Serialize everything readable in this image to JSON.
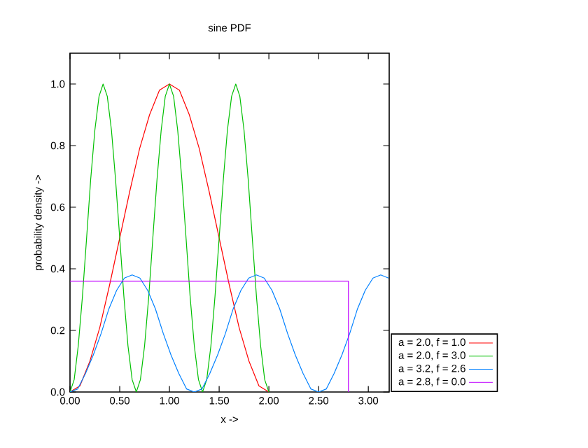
{
  "chart_data": {
    "type": "line",
    "title": "sine PDF",
    "xlabel": "x ->",
    "ylabel": "probability density ->",
    "xlim": [
      0,
      3.21
    ],
    "ylim": [
      0,
      1.1
    ],
    "xticks": [
      {
        "value": 0,
        "label": "0.00"
      },
      {
        "value": 0.5,
        "label": "0.50"
      },
      {
        "value": 1,
        "label": "1.00"
      },
      {
        "value": 1.5,
        "label": "1.50"
      },
      {
        "value": 2,
        "label": "2.00"
      },
      {
        "value": 2.5,
        "label": "2.50"
      },
      {
        "value": 3,
        "label": "3.00"
      }
    ],
    "yticks": [
      {
        "value": 0,
        "label": "0.0"
      },
      {
        "value": 0.2,
        "label": "0.2"
      },
      {
        "value": 0.4,
        "label": "0.4"
      },
      {
        "value": 0.6,
        "label": "0.6"
      },
      {
        "value": 0.8,
        "label": "0.8"
      },
      {
        "value": 1,
        "label": "1.0"
      }
    ],
    "legend": "bottom right",
    "marker": "none",
    "line_style": "solid",
    "series": [
      {
        "name": "a = 2.0, f = 1.0",
        "color": "#ff0000",
        "x": [
          0,
          0.1,
          0.2,
          0.3,
          0.4,
          0.5,
          0.6,
          0.7,
          0.8,
          0.9,
          1,
          1.1,
          1.2,
          1.3,
          1.4,
          1.5,
          1.6,
          1.7,
          1.8,
          1.9,
          2
        ],
        "values": [
          0,
          0.02,
          0.1,
          0.21,
          0.35,
          0.5,
          0.65,
          0.79,
          0.9,
          0.98,
          1,
          0.98,
          0.9,
          0.79,
          0.65,
          0.5,
          0.35,
          0.21,
          0.1,
          0.02,
          0
        ]
      },
      {
        "name": "a = 2.0, f = 3.0",
        "color": "#00c000",
        "x": [
          0,
          0.042,
          0.083,
          0.125,
          0.167,
          0.208,
          0.25,
          0.292,
          0.333,
          0.375,
          0.417,
          0.458,
          0.5,
          0.542,
          0.583,
          0.625,
          0.667,
          0.708,
          0.75,
          0.792,
          0.833,
          0.875,
          0.917,
          0.958,
          1,
          1.042,
          1.083,
          1.125,
          1.167,
          1.208,
          1.25,
          1.292,
          1.333,
          1.375,
          1.417,
          1.458,
          1.5,
          1.542,
          1.583,
          1.625,
          1.667,
          1.708,
          1.75,
          1.792,
          1.833,
          1.875,
          1.917,
          1.958,
          2
        ],
        "values": [
          0,
          0.04,
          0.15,
          0.31,
          0.5,
          0.69,
          0.85,
          0.96,
          1,
          0.96,
          0.85,
          0.69,
          0.5,
          0.31,
          0.15,
          0.04,
          0,
          0.04,
          0.15,
          0.31,
          0.5,
          0.69,
          0.85,
          0.96,
          1,
          0.96,
          0.85,
          0.69,
          0.5,
          0.31,
          0.15,
          0.04,
          0,
          0.04,
          0.15,
          0.31,
          0.5,
          0.69,
          0.85,
          0.96,
          1,
          0.96,
          0.85,
          0.69,
          0.5,
          0.31,
          0.15,
          0.04,
          0
        ]
      },
      {
        "name": "a = 3.2, f = 2.6",
        "color": "#0080ff",
        "x": [
          0,
          0.078,
          0.156,
          0.234,
          0.313,
          0.391,
          0.469,
          0.547,
          0.625,
          0.703,
          0.781,
          0.859,
          0.938,
          1.016,
          1.094,
          1.172,
          1.25,
          1.328,
          1.406,
          1.484,
          1.563,
          1.641,
          1.719,
          1.797,
          1.875,
          1.953,
          2.031,
          2.109,
          2.188,
          2.266,
          2.344,
          2.422,
          2.5,
          2.578,
          2.656,
          2.734,
          2.813,
          2.891,
          2.969,
          3.047,
          3.125,
          3.203
        ],
        "values": [
          0,
          0.01,
          0.06,
          0.12,
          0.19,
          0.27,
          0.33,
          0.37,
          0.38,
          0.37,
          0.33,
          0.27,
          0.19,
          0.12,
          0.06,
          0.01,
          0,
          0.01,
          0.06,
          0.12,
          0.19,
          0.27,
          0.33,
          0.37,
          0.38,
          0.37,
          0.33,
          0.27,
          0.19,
          0.12,
          0.06,
          0.01,
          0,
          0.01,
          0.06,
          0.12,
          0.19,
          0.27,
          0.33,
          0.37,
          0.38,
          0.37
        ]
      },
      {
        "name": "a = 2.8, f = 0.0",
        "color": "#c000ff",
        "x": [
          0,
          2.8,
          2.8
        ],
        "values": [
          0.36,
          0.36,
          0
        ]
      }
    ]
  }
}
